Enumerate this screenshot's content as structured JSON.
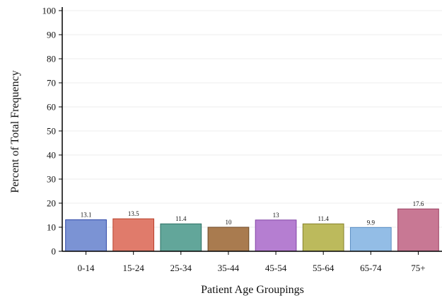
{
  "chart_data": {
    "type": "bar",
    "categories": [
      "0-14",
      "15-24",
      "25-34",
      "35-44",
      "45-54",
      "55-64",
      "65-74",
      "75+"
    ],
    "values": [
      13.1,
      13.5,
      11.4,
      10,
      13,
      11.4,
      9.9,
      17.6
    ],
    "value_labels": [
      "13.1",
      "13.5",
      "11.4",
      "10",
      "13",
      "11.4",
      "9.9",
      "17.6"
    ],
    "colors": [
      "#7b93d4",
      "#e07b6b",
      "#62a69a",
      "#a97b4f",
      "#b57ed1",
      "#bcba5c",
      "#93bde6",
      "#c87894"
    ],
    "border_colors": [
      "#2e48a8",
      "#b8402c",
      "#2d7064",
      "#6d4a27",
      "#8244a6",
      "#85822a",
      "#5b8fc4",
      "#9b3f61"
    ],
    "title": "",
    "xlabel": "Patient Age Groupings",
    "ylabel": "Percent of Total Frequency",
    "ylim": [
      0,
      100
    ],
    "yticks": [
      0,
      10,
      20,
      30,
      40,
      50,
      60,
      70,
      80,
      90,
      100
    ],
    "grid": true,
    "legend": "none"
  }
}
